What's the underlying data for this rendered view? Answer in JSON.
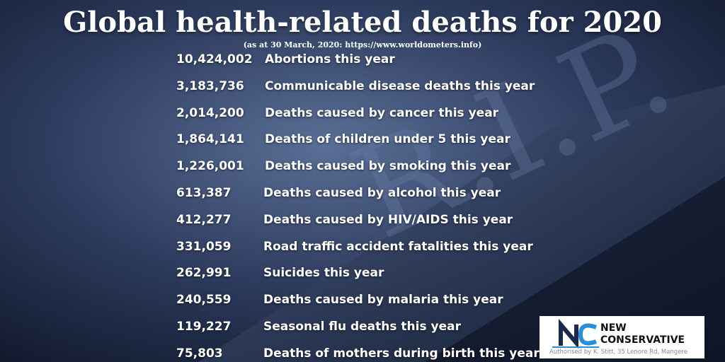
{
  "header": {
    "title": "Global health-related deaths for 2020",
    "subtitle": "(as at 30 March, 2020: https://www.worldometers.info)"
  },
  "rows": [
    {
      "number": "10,424,002",
      "label": "Abortions this year"
    },
    {
      "number": "3,183,736",
      "label": "Communicable disease deaths this year"
    },
    {
      "number": "2,014,200",
      "label": "Deaths caused by cancer this year"
    },
    {
      "number": "1,864,141",
      "label": "Deaths of children under 5 this year"
    },
    {
      "number": "1,226,001",
      "label": "Deaths caused by smoking this year"
    },
    {
      "number": "613,387",
      "label": "Deaths caused by alcohol this year"
    },
    {
      "number": "412,277",
      "label": "Deaths caused by HIV/AIDS this year"
    },
    {
      "number": "331,059",
      "label": "Road traffic accident fatalities this year"
    },
    {
      "number": "262,991",
      "label": "Suicides this year"
    },
    {
      "number": "240,559",
      "label": "Deaths caused by malaria this year"
    },
    {
      "number": "119,227",
      "label": "Seasonal flu deaths this year"
    },
    {
      "number": "75,803",
      "label": "Deaths of mothers during birth this year"
    }
  ],
  "logo": {
    "line1": "NEW",
    "line2": "CONSERVATIVE",
    "authorised": "Authorised by K. Stitt, 35 Lenore Rd, Mangere"
  }
}
